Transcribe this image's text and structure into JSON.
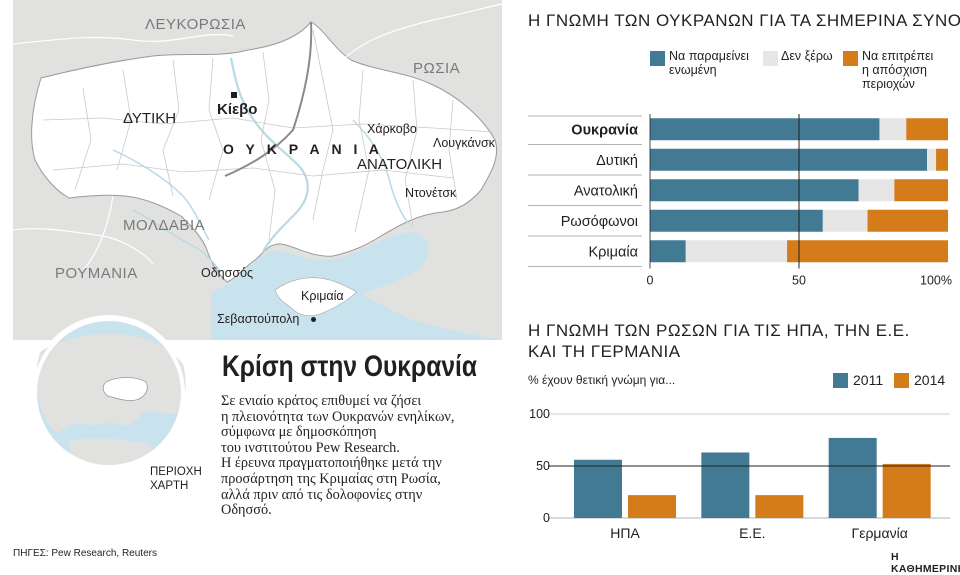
{
  "map": {
    "country_labels": [
      "ΛΕΥΚΟΡΩΣΙΑ",
      "ΡΩΣΙΑ",
      "ΜΟΛΔΑΒΙΑ",
      "ΡΟΥΜΑΝΙΑ"
    ],
    "ukraine_label": "Ο Υ Κ Ρ Α Ν Ι Α",
    "capital": "Κίεβο",
    "regions": [
      "ΔΥΤΙΚΗ",
      "ΑΝΑΤΟΛΙΚΗ"
    ],
    "cities": [
      "Χάρκοβο",
      "Λουγκάνσκ",
      "Ντονέτσκ",
      "Οδησσός",
      "Κριμαία",
      "Σεβαστούπολη"
    ],
    "locator_label": [
      "ΠΕΡΙΟΧΗ",
      "ΧΑΡΤΗ"
    ],
    "colors": {
      "sea": "#c9e3ee",
      "land": "#ffffff",
      "background": "#e1e1e0",
      "river": "#b9d9e6",
      "border": "#8a8a8a"
    }
  },
  "headline": "Κρίση στην Ουκρανία",
  "body_lines": [
    "Σε ενιαίο κράτος επιθυμεί να ζήσει",
    "η πλειονότητα των Ουκρανών ενηλίκων,",
    "σύμφωνα με δημοσκόπηση",
    "του ινστιτούτου Pew Research.",
    "Η έρευνα πραγματοποιήθηκε μετά την",
    "προσάρτηση της Κριμαίας στη Ρωσία,",
    "αλλά πριν από τις δολοφονίες στην",
    "Οδησσό."
  ],
  "sources": "ΠΗΓΕΣ: Pew Research, Reuters",
  "brand": "Η ΚΑΘΗΜΕΡΙΝΗ",
  "chart_data": [
    {
      "type": "bar",
      "orientation": "horizontal",
      "stacked": true,
      "title": "Η ΓΝΩΜΗ ΤΩΝ ΟΥΚΡΑΝΩΝ ΓΙΑ ΤΑ ΣΗΜΕΡΙΝΑ ΣΥΝΟΡΑ",
      "categories": [
        "Ουκρανία",
        "Δυτική",
        "Ανατολική",
        "Ρωσόφωνοι",
        "Κριμαία"
      ],
      "series": [
        {
          "name": "Να παραμείνει ενωμένη",
          "color": "#427a94",
          "values": [
            77,
            93,
            70,
            58,
            12
          ]
        },
        {
          "name": "Δεν ξέρω",
          "color": "#e6e6e6",
          "values": [
            9,
            3,
            12,
            15,
            34
          ]
        },
        {
          "name": "Να επιτρέπει η απόσχιση περιοχών",
          "color": "#d47b1a",
          "values": [
            14,
            4,
            18,
            27,
            54
          ]
        }
      ],
      "legend_lines": [
        [
          "Να παραμείνει",
          "ενωμένη"
        ],
        [
          "Δεν ξέρω"
        ],
        [
          "Να επιτρέπει",
          "η απόσχιση",
          "περιοχών"
        ]
      ],
      "xticks": [
        "0",
        "50",
        "100%"
      ],
      "xlim": [
        0,
        100
      ],
      "reference_line": 50,
      "legend_position": "top"
    },
    {
      "type": "bar",
      "orientation": "vertical",
      "title": "Η ΓΝΩΜΗ ΤΩΝ ΡΩΣΩΝ ΓΙΑ ΤΙΣ ΗΠΑ, ΤΗΝ Ε.Ε. ΚΑΙ ΤΗ ΓΕΡΜΑΝΙΑ",
      "title_lines": [
        "Η ΓΝΩΜΗ ΤΩΝ ΡΩΣΩΝ ΓΙΑ ΤΙΣ ΗΠΑ, ΤΗΝ Ε.Ε.",
        "ΚΑΙ ΤΗ ΓΕΡΜΑΝΙΑ"
      ],
      "ylabel": "% έχουν θετική γνώμη για...",
      "categories": [
        "ΗΠΑ",
        "Ε.Ε.",
        "Γερμανία"
      ],
      "series": [
        {
          "name": "2011",
          "color": "#427a94",
          "values": [
            56,
            63,
            77
          ]
        },
        {
          "name": "2014",
          "color": "#d47b1a",
          "values": [
            22,
            22,
            52
          ]
        }
      ],
      "yticks": [
        0,
        50,
        100
      ],
      "ylim": [
        0,
        100
      ],
      "grid": true,
      "legend_position": "top-right"
    }
  ]
}
